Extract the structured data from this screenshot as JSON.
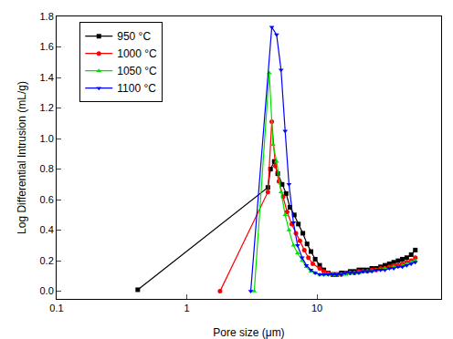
{
  "chart_data": {
    "type": "line",
    "x_label": "Pore size (μm)",
    "y_label": "Log Differential Intrusion (mL/g)",
    "log": "x",
    "grid": false,
    "legend": "top-left",
    "xlim": [
      0.1,
      90
    ],
    "xticks": [
      0.1,
      1,
      10
    ],
    "ylim": [
      -0.05,
      1.8
    ],
    "yticks": [
      {
        "value": 0,
        "label": "0.0"
      },
      0.2,
      0.4,
      0.6,
      0.8,
      {
        "value": 1,
        "label": "1.0"
      },
      1.2,
      1.4,
      1.6,
      1.8
    ],
    "series": [
      {
        "name": "950 °C",
        "color": "#000000",
        "marker": "square",
        "x": [
          0.42,
          4.2,
          4.4,
          4.7,
          5.0,
          5.4,
          5.8,
          6.2,
          6.7,
          7.2,
          7.8,
          8.4,
          9.0,
          9.7,
          10.5,
          11.3,
          12.2,
          13.2,
          14.2,
          15.4,
          16.6,
          18,
          19.4,
          21,
          22.6,
          24.4,
          26.4,
          28.5,
          30.8,
          33.3,
          36,
          38.9,
          42,
          45.3,
          49,
          53,
          57
        ],
        "values": [
          0.01,
          0.68,
          0.8,
          0.85,
          0.77,
          0.7,
          0.64,
          0.55,
          0.5,
          0.44,
          0.38,
          0.31,
          0.26,
          0.21,
          0.17,
          0.14,
          0.12,
          0.11,
          0.11,
          0.12,
          0.12,
          0.13,
          0.13,
          0.14,
          0.14,
          0.14,
          0.15,
          0.15,
          0.16,
          0.17,
          0.18,
          0.19,
          0.2,
          0.21,
          0.22,
          0.24,
          0.27
        ]
      },
      {
        "name": "1000 °C",
        "color": "#ff0000",
        "marker": "circle",
        "x": [
          1.8,
          4.2,
          4.5,
          4.8,
          5.1,
          5.5,
          5.9,
          6.4,
          6.9,
          7.4,
          8.0,
          8.6,
          9.3,
          10.5,
          11.3,
          12.2,
          13.2,
          14.2,
          15.4,
          16.6,
          18,
          19.4,
          21,
          22.6,
          24.4,
          26.4,
          28.5,
          30.8,
          33.3,
          36,
          38.9,
          42,
          45.3,
          49,
          53,
          57
        ],
        "values": [
          0.0,
          0.65,
          1.11,
          0.82,
          0.72,
          0.62,
          0.52,
          0.44,
          0.38,
          0.33,
          0.27,
          0.22,
          0.18,
          0.15,
          0.13,
          0.12,
          0.11,
          0.11,
          0.11,
          0.12,
          0.12,
          0.12,
          0.13,
          0.13,
          0.13,
          0.14,
          0.14,
          0.15,
          0.15,
          0.16,
          0.17,
          0.17,
          0.18,
          0.19,
          0.2,
          0.22
        ]
      },
      {
        "name": "1050 °C",
        "color": "#00e000",
        "marker": "triangle-up",
        "x": [
          3.3,
          4.3,
          4.6,
          4.9,
          5.3,
          5.7,
          6.1,
          6.6,
          7.1,
          7.7,
          8.3,
          9.0,
          9.7,
          10.5,
          11.3,
          12.2,
          13.2,
          14.2,
          15.4,
          16.6,
          18,
          19.4,
          21,
          22.6,
          24.4,
          26.4,
          28.5,
          30.8,
          33.3,
          36,
          38.9,
          42,
          45.3,
          49,
          53,
          57
        ],
        "values": [
          0.0,
          1.43,
          0.96,
          0.85,
          0.65,
          0.5,
          0.4,
          0.3,
          0.25,
          0.2,
          0.16,
          0.13,
          0.12,
          0.11,
          0.11,
          0.11,
          0.11,
          0.11,
          0.11,
          0.11,
          0.12,
          0.12,
          0.12,
          0.13,
          0.13,
          0.13,
          0.14,
          0.14,
          0.15,
          0.15,
          0.16,
          0.16,
          0.17,
          0.18,
          0.19,
          0.2
        ]
      },
      {
        "name": "1100 °C",
        "color": "#0000ff",
        "marker": "triangle-down",
        "x": [
          3.1,
          4.5,
          4.9,
          5.3,
          5.7,
          6.1,
          6.6,
          7.1,
          7.7,
          8.3,
          9.0,
          9.7,
          10.5,
          11.3,
          12.2,
          13.2,
          14.2,
          15.4,
          16.6,
          18,
          19.4,
          21,
          22.6,
          24.4,
          26.4,
          28.5,
          30.8,
          33.3,
          36,
          38.9,
          42,
          45.3,
          49,
          53,
          57
        ],
        "values": [
          0.0,
          1.73,
          1.68,
          1.45,
          1.05,
          0.7,
          0.45,
          0.3,
          0.22,
          0.17,
          0.14,
          0.12,
          0.11,
          0.11,
          0.11,
          0.11,
          0.11,
          0.11,
          0.12,
          0.12,
          0.12,
          0.12,
          0.13,
          0.13,
          0.13,
          0.14,
          0.14,
          0.14,
          0.15,
          0.15,
          0.16,
          0.16,
          0.17,
          0.18,
          0.19
        ]
      }
    ]
  }
}
